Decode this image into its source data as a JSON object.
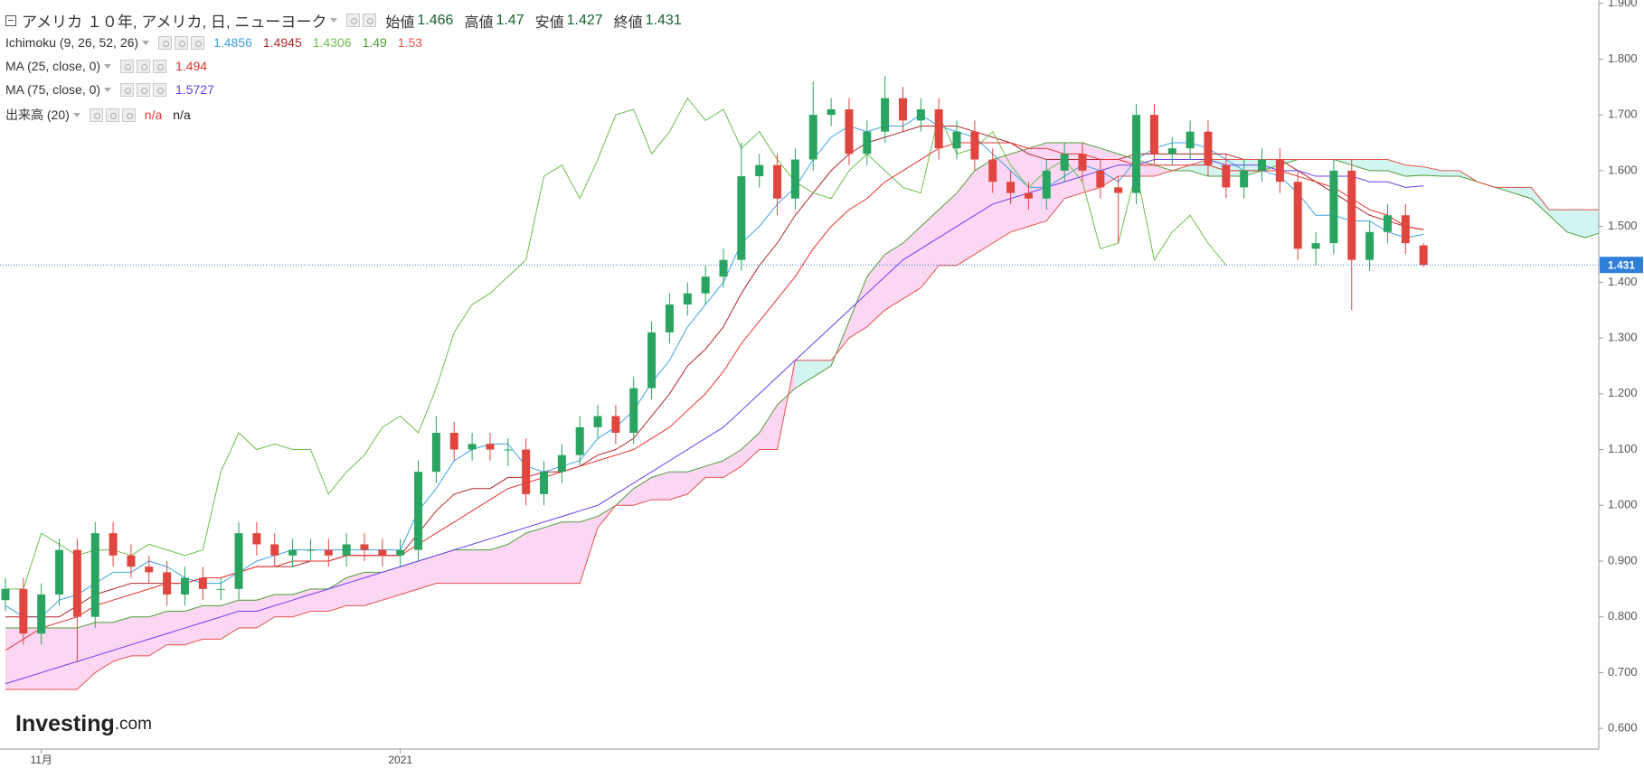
{
  "chart_data": {
    "type": "candlestick",
    "title": "アメリカ １０年, アメリカ, 日, ニューヨーク",
    "ohlc_labels": [
      "始値",
      "高値",
      "安値",
      "終値"
    ],
    "categories": [
      null,
      null,
      "11月",
      null,
      null,
      null,
      null,
      null,
      null,
      null,
      null,
      null,
      null,
      null,
      null,
      null,
      null,
      null,
      null,
      null,
      null,
      null,
      "2021",
      null,
      null,
      null,
      null,
      null,
      null,
      null,
      null,
      null,
      null,
      null,
      null,
      null,
      null,
      null,
      null,
      null,
      null,
      null,
      null,
      null,
      null,
      null,
      null,
      null,
      null,
      null,
      null,
      null,
      null,
      null,
      null,
      null,
      null,
      null,
      null,
      null,
      null,
      null,
      null,
      null,
      null,
      null,
      null,
      null,
      null,
      null,
      null,
      null,
      null,
      null,
      null,
      null,
      null,
      null,
      null,
      null,
      null,
      null,
      null,
      null,
      null,
      null,
      null,
      null,
      null,
      null
    ],
    "open": [
      0.83,
      0.85,
      0.77,
      0.84,
      0.92,
      0.8,
      0.95,
      0.91,
      0.89,
      0.88,
      0.84,
      0.87,
      0.85,
      0.85,
      0.95,
      0.93,
      0.91,
      0.92,
      0.92,
      0.91,
      0.93,
      0.92,
      0.91,
      0.92,
      1.06,
      1.13,
      1.1,
      1.11,
      1.1,
      1.1,
      1.02,
      1.06,
      1.09,
      1.14,
      1.16,
      1.13,
      1.21,
      1.31,
      1.36,
      1.38,
      1.41,
      1.44,
      1.59,
      1.61,
      1.55,
      1.62,
      1.7,
      1.71,
      1.63,
      1.67,
      1.73,
      1.69,
      1.71,
      1.64,
      1.67,
      1.62,
      1.58,
      1.56,
      1.55,
      1.6,
      1.63,
      1.6,
      1.57,
      1.56,
      1.7,
      1.63,
      1.64,
      1.67,
      1.61,
      1.57,
      1.6,
      1.62,
      1.58,
      1.46,
      1.47,
      1.6,
      1.44,
      1.49,
      1.52,
      1.466,
      null,
      null,
      null,
      null,
      null,
      null,
      null,
      null,
      null,
      null
    ],
    "high": [
      0.87,
      0.87,
      0.86,
      0.94,
      0.94,
      0.97,
      0.97,
      0.93,
      0.91,
      0.9,
      0.89,
      0.89,
      0.87,
      0.97,
      0.97,
      0.95,
      0.94,
      0.94,
      0.94,
      0.95,
      0.95,
      0.94,
      0.94,
      1.08,
      1.16,
      1.15,
      1.13,
      1.13,
      1.12,
      1.12,
      1.08,
      1.11,
      1.16,
      1.18,
      1.18,
      1.23,
      1.33,
      1.38,
      1.4,
      1.43,
      1.46,
      1.65,
      1.63,
      1.63,
      1.64,
      1.76,
      1.73,
      1.73,
      1.69,
      1.77,
      1.75,
      1.73,
      1.73,
      1.69,
      1.69,
      1.64,
      1.6,
      1.58,
      1.62,
      1.65,
      1.65,
      1.62,
      1.59,
      1.72,
      1.72,
      1.66,
      1.69,
      1.69,
      1.63,
      1.62,
      1.64,
      1.64,
      1.6,
      1.49,
      1.62,
      1.62,
      1.51,
      1.54,
      1.54,
      1.47,
      null,
      null,
      null,
      null,
      null,
      null,
      null,
      null,
      null,
      null
    ],
    "low": [
      0.81,
      0.75,
      0.75,
      0.82,
      0.72,
      0.78,
      0.89,
      0.87,
      0.86,
      0.82,
      0.82,
      0.83,
      0.83,
      0.83,
      0.91,
      0.89,
      0.89,
      0.9,
      0.89,
      0.89,
      0.9,
      0.89,
      0.89,
      0.9,
      1.04,
      1.08,
      1.08,
      1.08,
      1.07,
      1.0,
      1.0,
      1.04,
      1.07,
      1.12,
      1.11,
      1.11,
      1.19,
      1.29,
      1.34,
      1.36,
      1.39,
      1.42,
      1.57,
      1.52,
      1.53,
      1.6,
      1.68,
      1.61,
      1.61,
      1.65,
      1.67,
      1.67,
      1.62,
      1.62,
      1.6,
      1.56,
      1.54,
      1.53,
      1.53,
      1.58,
      1.58,
      1.55,
      1.47,
      1.54,
      1.61,
      1.61,
      1.62,
      1.59,
      1.55,
      1.55,
      1.58,
      1.56,
      1.44,
      1.43,
      1.45,
      1.35,
      1.42,
      1.47,
      1.45,
      1.427,
      null,
      null,
      null,
      null,
      null,
      null,
      null,
      null,
      null,
      null
    ],
    "close": [
      0.85,
      0.77,
      0.84,
      0.92,
      0.8,
      0.95,
      0.91,
      0.89,
      0.88,
      0.84,
      0.87,
      0.85,
      0.85,
      0.95,
      0.93,
      0.91,
      0.92,
      0.92,
      0.91,
      0.93,
      0.92,
      0.91,
      0.92,
      1.06,
      1.13,
      1.1,
      1.11,
      1.1,
      1.1,
      1.02,
      1.06,
      1.09,
      1.14,
      1.16,
      1.13,
      1.21,
      1.31,
      1.36,
      1.38,
      1.41,
      1.44,
      1.59,
      1.61,
      1.55,
      1.62,
      1.7,
      1.71,
      1.63,
      1.67,
      1.73,
      1.69,
      1.71,
      1.64,
      1.67,
      1.62,
      1.58,
      1.56,
      1.55,
      1.6,
      1.63,
      1.6,
      1.57,
      1.56,
      1.7,
      1.63,
      1.64,
      1.67,
      1.61,
      1.57,
      1.6,
      1.62,
      1.58,
      1.46,
      1.47,
      1.6,
      1.44,
      1.49,
      1.52,
      1.47,
      1.431,
      null,
      null,
      null,
      null,
      null,
      null,
      null,
      null,
      null,
      null
    ],
    "up_color": "#2aa461",
    "down_color": "#e0463f",
    "ohlc_value_color": "#17622f",
    "last_price_color": "#2f7ed8",
    "ichimoku": {
      "name": "Ichimoku (9, 26, 52, 26)",
      "cloud_up_color": "#fcd7f4",
      "cloud_down_color": "#d2f5f2",
      "lines": [
        {
          "color": "#3ea2e6",
          "values": [
            0.82,
            0.8,
            0.8,
            0.83,
            0.84,
            0.86,
            0.88,
            0.88,
            0.9,
            0.89,
            0.87,
            0.86,
            0.86,
            0.88,
            0.9,
            0.91,
            0.92,
            0.92,
            0.92,
            0.92,
            0.92,
            0.92,
            0.92,
            0.99,
            1.03,
            1.08,
            1.1,
            1.11,
            1.11,
            1.07,
            1.06,
            1.07,
            1.08,
            1.12,
            1.14,
            1.17,
            1.22,
            1.26,
            1.32,
            1.36,
            1.4,
            1.47,
            1.5,
            1.54,
            1.57,
            1.62,
            1.66,
            1.68,
            1.67,
            1.68,
            1.68,
            1.7,
            1.68,
            1.67,
            1.66,
            1.63,
            1.6,
            1.57,
            1.57,
            1.59,
            1.61,
            1.6,
            1.58,
            1.62,
            1.64,
            1.65,
            1.65,
            1.64,
            1.62,
            1.6,
            1.6,
            1.59,
            1.56,
            1.52,
            1.52,
            1.51,
            1.51,
            1.49,
            1.48,
            1.4856,
            null,
            null,
            null,
            null,
            null,
            null,
            null,
            null,
            null,
            null
          ]
        },
        {
          "color": "#b0282c",
          "values": [
            0.8,
            0.8,
            0.8,
            0.8,
            0.82,
            0.84,
            0.85,
            0.86,
            0.86,
            0.86,
            0.86,
            0.87,
            0.87,
            0.88,
            0.89,
            0.89,
            0.89,
            0.9,
            0.9,
            0.91,
            0.91,
            0.91,
            0.91,
            0.95,
            0.99,
            1.02,
            1.03,
            1.03,
            1.05,
            1.05,
            1.06,
            1.06,
            1.07,
            1.09,
            1.1,
            1.12,
            1.16,
            1.2,
            1.25,
            1.28,
            1.32,
            1.38,
            1.43,
            1.47,
            1.52,
            1.56,
            1.6,
            1.63,
            1.65,
            1.66,
            1.67,
            1.68,
            1.68,
            1.68,
            1.67,
            1.66,
            1.65,
            1.63,
            1.62,
            1.62,
            1.62,
            1.62,
            1.62,
            1.63,
            1.63,
            1.63,
            1.63,
            1.63,
            1.63,
            1.62,
            1.62,
            1.62,
            1.6,
            1.58,
            1.56,
            1.54,
            1.52,
            1.51,
            1.5,
            1.4945,
            null,
            null,
            null,
            null,
            null,
            null,
            null,
            null,
            null,
            null
          ]
        },
        {
          "color": "#6cbf4c",
          "values": [
            0.85,
            0.85,
            0.95,
            0.93,
            0.91,
            0.92,
            0.92,
            0.91,
            0.93,
            0.92,
            0.91,
            0.92,
            1.06,
            1.13,
            1.1,
            1.11,
            1.1,
            1.1,
            1.02,
            1.06,
            1.09,
            1.14,
            1.16,
            1.13,
            1.21,
            1.31,
            1.36,
            1.38,
            1.41,
            1.44,
            1.59,
            1.61,
            1.55,
            1.62,
            1.7,
            1.71,
            1.63,
            1.67,
            1.73,
            1.69,
            1.71,
            1.64,
            1.67,
            1.62,
            1.58,
            1.56,
            1.55,
            1.6,
            1.63,
            1.6,
            1.57,
            1.56,
            1.7,
            1.63,
            1.64,
            1.67,
            1.61,
            1.57,
            1.6,
            1.62,
            1.58,
            1.46,
            1.47,
            1.6,
            1.44,
            1.49,
            1.52,
            1.47,
            1.4306,
            null,
            null,
            null,
            null,
            null,
            null,
            null,
            null,
            null,
            null,
            null,
            null,
            null,
            null,
            null,
            null,
            null,
            null,
            null,
            null,
            null,
            null
          ]
        },
        {
          "color": "#4e9e35",
          "values": [
            0.78,
            0.78,
            0.78,
            0.78,
            0.78,
            0.79,
            0.79,
            0.8,
            0.8,
            0.81,
            0.81,
            0.82,
            0.82,
            0.83,
            0.83,
            0.84,
            0.84,
            0.85,
            0.85,
            0.87,
            0.88,
            0.88,
            0.89,
            0.9,
            0.91,
            0.92,
            0.92,
            0.92,
            0.93,
            0.95,
            0.96,
            0.97,
            0.97,
            0.98,
            1.0,
            1.03,
            1.05,
            1.06,
            1.06,
            1.07,
            1.08,
            1.1,
            1.13,
            1.18,
            1.21,
            1.23,
            1.25,
            1.33,
            1.41,
            1.45,
            1.47,
            1.5,
            1.53,
            1.56,
            1.6,
            1.62,
            1.63,
            1.64,
            1.65,
            1.65,
            1.65,
            1.64,
            1.63,
            1.62,
            1.61,
            1.6,
            1.6,
            1.59,
            1.59,
            1.59,
            1.6,
            1.61,
            1.62,
            1.62,
            1.62,
            1.61,
            1.6,
            1.6,
            1.59,
            1.5918,
            1.59,
            1.59,
            1.58,
            1.57,
            1.56,
            1.55,
            1.52,
            1.49,
            1.48,
            1.49
          ]
        },
        {
          "color": "#e4534c",
          "values": [
            0.67,
            0.67,
            0.67,
            0.67,
            0.67,
            0.7,
            0.72,
            0.73,
            0.73,
            0.75,
            0.75,
            0.76,
            0.76,
            0.78,
            0.78,
            0.8,
            0.8,
            0.81,
            0.81,
            0.82,
            0.82,
            0.83,
            0.84,
            0.85,
            0.86,
            0.86,
            0.86,
            0.86,
            0.86,
            0.86,
            0.86,
            0.86,
            0.86,
            0.96,
            1.0,
            1.0,
            1.01,
            1.01,
            1.02,
            1.05,
            1.05,
            1.07,
            1.1,
            1.1,
            1.26,
            1.26,
            1.26,
            1.3,
            1.32,
            1.35,
            1.37,
            1.39,
            1.43,
            1.43,
            1.45,
            1.47,
            1.49,
            1.5,
            1.51,
            1.55,
            1.56,
            1.57,
            1.59,
            1.59,
            1.59,
            1.6,
            1.61,
            1.62,
            1.62,
            1.62,
            1.62,
            1.62,
            1.62,
            1.62,
            1.62,
            1.62,
            1.62,
            1.62,
            1.61,
            1.607,
            1.6,
            1.6,
            1.58,
            1.57,
            1.57,
            1.57,
            1.53,
            1.53,
            1.53,
            1.53
          ]
        }
      ]
    },
    "ma25": {
      "name": "MA (25, close, 0)",
      "color": "#e8322e",
      "values": [
        0.74,
        0.76,
        0.78,
        0.79,
        0.8,
        0.82,
        0.83,
        0.84,
        0.85,
        0.86,
        0.86,
        0.87,
        0.87,
        0.88,
        0.89,
        0.89,
        0.9,
        0.9,
        0.9,
        0.91,
        0.91,
        0.91,
        0.91,
        0.93,
        0.95,
        0.97,
        0.99,
        1.01,
        1.03,
        1.04,
        1.05,
        1.06,
        1.07,
        1.08,
        1.09,
        1.1,
        1.12,
        1.14,
        1.17,
        1.2,
        1.24,
        1.29,
        1.33,
        1.37,
        1.41,
        1.46,
        1.5,
        1.53,
        1.55,
        1.58,
        1.6,
        1.62,
        1.64,
        1.65,
        1.65,
        1.65,
        1.65,
        1.64,
        1.64,
        1.63,
        1.63,
        1.62,
        1.62,
        1.61,
        1.61,
        1.61,
        1.61,
        1.61,
        1.6,
        1.6,
        1.6,
        1.6,
        1.59,
        1.58,
        1.57,
        1.55,
        1.53,
        1.52,
        1.5,
        1.494,
        null,
        null,
        null,
        null,
        null,
        null,
        null,
        null,
        null,
        null
      ]
    },
    "ma75": {
      "name": "MA (75, close, 0)",
      "color": "#6a3ef0",
      "values": [
        0.68,
        0.69,
        0.7,
        0.71,
        0.72,
        0.73,
        0.74,
        0.75,
        0.76,
        0.77,
        0.78,
        0.79,
        0.8,
        0.81,
        0.81,
        0.82,
        0.83,
        0.84,
        0.85,
        0.86,
        0.87,
        0.88,
        0.89,
        0.9,
        0.91,
        0.92,
        0.93,
        0.94,
        0.95,
        0.96,
        0.97,
        0.98,
        0.99,
        1.0,
        1.02,
        1.04,
        1.06,
        1.08,
        1.1,
        1.12,
        1.14,
        1.17,
        1.2,
        1.23,
        1.26,
        1.29,
        1.32,
        1.35,
        1.38,
        1.41,
        1.44,
        1.46,
        1.48,
        1.5,
        1.52,
        1.54,
        1.55,
        1.56,
        1.57,
        1.58,
        1.59,
        1.6,
        1.61,
        1.61,
        1.62,
        1.62,
        1.62,
        1.62,
        1.61,
        1.61,
        1.61,
        1.6,
        1.6,
        1.59,
        1.59,
        1.59,
        1.58,
        1.58,
        1.57,
        1.5727,
        null,
        null,
        null,
        null,
        null,
        null,
        null,
        null,
        null,
        null
      ]
    },
    "volume": {
      "name": "出来高 (20)",
      "values_text": [
        "n/a",
        "n/a"
      ]
    },
    "ylim": [
      0.563,
      1.906
    ],
    "yticks": [
      {
        "value": 0.6,
        "label": "0.600"
      },
      {
        "value": 0.7,
        "label": "0.700"
      },
      {
        "value": 0.8,
        "label": "0.800"
      },
      {
        "value": 0.9,
        "label": "0.900"
      },
      {
        "value": 1.0,
        "label": "1.000"
      },
      {
        "value": 1.1,
        "label": "1.100"
      },
      {
        "value": 1.2,
        "label": "1.200"
      },
      {
        "value": 1.3,
        "label": "1.300"
      },
      {
        "value": 1.4,
        "label": "1.400"
      },
      {
        "value": 1.5,
        "label": "1.500"
      },
      {
        "value": 1.6,
        "label": "1.600"
      },
      {
        "value": 1.7,
        "label": "1.700"
      },
      {
        "value": 1.8,
        "label": "1.800"
      },
      {
        "value": 1.9,
        "label": "1.900"
      }
    ],
    "grid": false,
    "watermark": [
      "Investing",
      ".com"
    ]
  }
}
